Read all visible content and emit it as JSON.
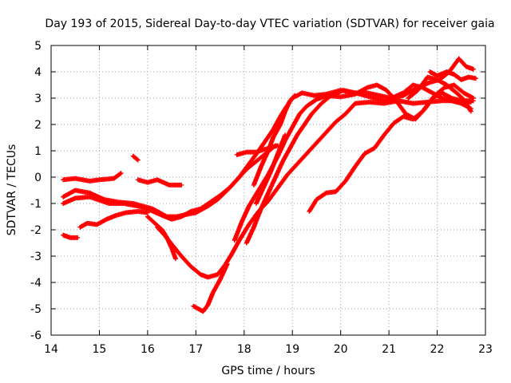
{
  "chart_data": {
    "type": "scatter",
    "title": "Day 193 of 2015, Sidereal Day-to-day VTEC variation (SDTVAR) for receiver gaia",
    "xlabel": "GPS time / hours",
    "ylabel": "SDTVAR / TECUs",
    "xlim": [
      14,
      23
    ],
    "ylim": [
      -6,
      5
    ],
    "xticks": [
      "14",
      "15",
      "16",
      "17",
      "18",
      "19",
      "20",
      "21",
      "22",
      "23"
    ],
    "yticks": [
      "-6",
      "-5",
      "-4",
      "-3",
      "-2",
      "-1",
      "0",
      "1",
      "2",
      "3",
      "4",
      "5"
    ],
    "grid": true,
    "marker_color": "#ff0000",
    "series": [
      {
        "points": [
          [
            14.25,
            -0.1
          ],
          [
            14.5,
            -0.05
          ],
          [
            14.8,
            -0.15
          ],
          [
            15.0,
            -0.1
          ],
          [
            15.3,
            -0.05
          ],
          [
            15.45,
            0.15
          ]
        ]
      },
      {
        "points": [
          [
            14.25,
            -0.75
          ],
          [
            14.5,
            -0.5
          ],
          [
            14.8,
            -0.6
          ],
          [
            15.1,
            -0.85
          ],
          [
            15.4,
            -0.95
          ],
          [
            15.7,
            -1.0
          ],
          [
            15.9,
            -1.1
          ],
          [
            16.1,
            -1.2
          ],
          [
            16.4,
            -1.5
          ],
          [
            16.6,
            -1.5
          ],
          [
            16.85,
            -1.4
          ],
          [
            17.0,
            -1.35
          ],
          [
            17.25,
            -1.1
          ],
          [
            17.45,
            -0.85
          ],
          [
            17.65,
            -0.5
          ],
          [
            17.85,
            -0.1
          ],
          [
            18.05,
            0.3
          ],
          [
            18.25,
            0.6
          ],
          [
            18.45,
            0.9
          ],
          [
            18.65,
            1.2
          ]
        ]
      },
      {
        "points": [
          [
            14.25,
            -1.0
          ],
          [
            14.5,
            -0.8
          ],
          [
            14.8,
            -0.75
          ],
          [
            15.2,
            -1.0
          ],
          [
            15.5,
            -1.0
          ],
          [
            15.8,
            -1.1
          ],
          [
            16.05,
            -1.25
          ],
          [
            16.3,
            -1.45
          ],
          [
            16.5,
            -1.6
          ],
          [
            16.7,
            -1.5
          ],
          [
            16.9,
            -1.3
          ],
          [
            17.1,
            -1.2
          ],
          [
            17.3,
            -0.95
          ],
          [
            17.5,
            -0.7
          ],
          [
            17.7,
            -0.4
          ],
          [
            17.9,
            0.0
          ],
          [
            18.1,
            0.5
          ],
          [
            18.3,
            1.0
          ],
          [
            18.45,
            1.4
          ],
          [
            18.6,
            1.8
          ],
          [
            18.75,
            2.3
          ],
          [
            18.85,
            2.6
          ],
          [
            19.0,
            3.0
          ],
          [
            19.2,
            3.2
          ],
          [
            19.45,
            3.1
          ],
          [
            19.7,
            3.15
          ],
          [
            20.0,
            3.3
          ],
          [
            20.3,
            3.2
          ],
          [
            20.6,
            3.05
          ],
          [
            20.9,
            2.9
          ],
          [
            21.3,
            3.1
          ],
          [
            21.6,
            3.4
          ],
          [
            21.85,
            3.6
          ],
          [
            22.05,
            3.7
          ],
          [
            22.25,
            4.0
          ],
          [
            22.45,
            4.5
          ],
          [
            22.6,
            4.2
          ],
          [
            22.75,
            4.1
          ]
        ]
      },
      {
        "points": [
          [
            14.25,
            -2.2
          ],
          [
            14.4,
            -2.3
          ],
          [
            14.55,
            -2.3
          ]
        ]
      },
      {
        "points": [
          [
            14.6,
            -1.9
          ],
          [
            14.75,
            -1.75
          ],
          [
            14.95,
            -1.8
          ],
          [
            15.15,
            -1.6
          ],
          [
            15.35,
            -1.45
          ],
          [
            15.55,
            -1.35
          ],
          [
            15.8,
            -1.3
          ],
          [
            16.0,
            -1.35
          ]
        ]
      },
      {
        "points": [
          [
            15.7,
            0.8
          ],
          [
            15.8,
            0.65
          ]
        ]
      },
      {
        "points": [
          [
            15.8,
            -0.1
          ],
          [
            16.0,
            -0.2
          ],
          [
            16.2,
            -0.1
          ],
          [
            16.45,
            -0.3
          ],
          [
            16.7,
            -0.3
          ]
        ]
      },
      {
        "points": [
          [
            16.0,
            -1.5
          ],
          [
            16.15,
            -1.75
          ],
          [
            16.3,
            -2.0
          ],
          [
            16.4,
            -2.3
          ],
          [
            16.5,
            -2.7
          ],
          [
            16.58,
            -3.1
          ]
        ]
      },
      {
        "points": [
          [
            16.2,
            -1.9
          ],
          [
            16.35,
            -2.2
          ],
          [
            16.5,
            -2.55
          ],
          [
            16.7,
            -3.0
          ],
          [
            16.9,
            -3.4
          ],
          [
            17.1,
            -3.7
          ],
          [
            17.25,
            -3.8
          ],
          [
            17.45,
            -3.7
          ],
          [
            17.6,
            -3.35
          ],
          [
            17.75,
            -2.9
          ],
          [
            17.9,
            -2.4
          ],
          [
            18.1,
            -1.8
          ],
          [
            18.3,
            -1.3
          ],
          [
            18.5,
            -0.9
          ],
          [
            18.7,
            -0.4
          ],
          [
            18.9,
            0.1
          ],
          [
            19.1,
            0.5
          ],
          [
            19.3,
            0.9
          ],
          [
            19.5,
            1.3
          ],
          [
            19.7,
            1.7
          ],
          [
            19.9,
            2.1
          ],
          [
            20.1,
            2.4
          ],
          [
            20.3,
            2.8
          ],
          [
            20.6,
            2.85
          ],
          [
            20.9,
            2.8
          ],
          [
            21.2,
            2.9
          ],
          [
            21.5,
            2.8
          ],
          [
            21.8,
            2.85
          ],
          [
            22.1,
            2.9
          ],
          [
            22.4,
            2.9
          ],
          [
            22.7,
            2.85
          ]
        ]
      },
      {
        "points": [
          [
            16.95,
            -4.9
          ],
          [
            17.05,
            -5.0
          ],
          [
            17.15,
            -5.1
          ],
          [
            17.25,
            -4.85
          ],
          [
            17.35,
            -4.4
          ],
          [
            17.5,
            -3.9
          ],
          [
            17.65,
            -3.3
          ]
        ]
      },
      {
        "points": [
          [
            17.8,
            -2.4
          ],
          [
            17.95,
            -1.7
          ],
          [
            18.1,
            -1.1
          ],
          [
            18.3,
            -0.5
          ],
          [
            18.5,
            0.1
          ],
          [
            18.7,
            0.8
          ],
          [
            18.85,
            1.4
          ],
          [
            19.0,
            1.9
          ],
          [
            19.15,
            2.4
          ],
          [
            19.3,
            2.7
          ],
          [
            19.5,
            2.95
          ],
          [
            19.7,
            3.1
          ],
          [
            20.0,
            3.05
          ],
          [
            20.3,
            3.15
          ],
          [
            20.55,
            3.4
          ],
          [
            20.75,
            3.5
          ],
          [
            20.95,
            3.3
          ],
          [
            21.15,
            2.9
          ],
          [
            21.35,
            2.4
          ],
          [
            21.55,
            2.2
          ],
          [
            21.75,
            2.6
          ],
          [
            21.95,
            3.1
          ],
          [
            22.15,
            3.4
          ],
          [
            22.35,
            3.5
          ],
          [
            22.55,
            3.2
          ],
          [
            22.75,
            3.0
          ]
        ]
      },
      {
        "points": [
          [
            18.05,
            -2.5
          ],
          [
            18.2,
            -1.9
          ],
          [
            18.35,
            -1.2
          ],
          [
            18.5,
            -0.6
          ],
          [
            18.65,
            0.0
          ],
          [
            18.8,
            0.6
          ],
          [
            18.95,
            1.1
          ],
          [
            19.1,
            1.6
          ],
          [
            19.25,
            2.0
          ],
          [
            19.4,
            2.4
          ],
          [
            19.6,
            2.8
          ],
          [
            19.8,
            3.1
          ],
          [
            20.05,
            3.3
          ],
          [
            20.3,
            3.2
          ],
          [
            20.55,
            3.2
          ],
          [
            20.8,
            3.1
          ],
          [
            21.05,
            3.0
          ],
          [
            21.3,
            3.2
          ],
          [
            21.5,
            3.5
          ],
          [
            21.7,
            3.4
          ],
          [
            21.9,
            3.2
          ],
          [
            22.1,
            3.0
          ],
          [
            22.3,
            2.9
          ],
          [
            22.5,
            2.8
          ],
          [
            22.7,
            2.6
          ]
        ]
      },
      {
        "points": [
          [
            18.2,
            -0.3
          ],
          [
            18.35,
            0.4
          ],
          [
            18.5,
            1.0
          ],
          [
            18.6,
            1.5
          ],
          [
            18.75,
            2.0
          ],
          [
            18.85,
            2.5
          ],
          [
            18.95,
            2.9
          ],
          [
            19.05,
            3.1
          ]
        ]
      },
      {
        "points": [
          [
            18.25,
            -1.0
          ],
          [
            18.4,
            -0.4
          ],
          [
            18.55,
            0.2
          ],
          [
            18.7,
            0.9
          ],
          [
            18.85,
            1.6
          ]
        ]
      },
      {
        "points": [
          [
            17.85,
            0.85
          ],
          [
            18.05,
            0.95
          ],
          [
            18.25,
            0.95
          ],
          [
            18.5,
            1.1
          ],
          [
            18.7,
            1.2
          ]
        ]
      },
      {
        "points": [
          [
            19.35,
            -1.3
          ],
          [
            19.5,
            -0.85
          ],
          [
            19.7,
            -0.6
          ],
          [
            19.9,
            -0.55
          ],
          [
            20.1,
            -0.15
          ],
          [
            20.3,
            0.4
          ],
          [
            20.5,
            0.9
          ],
          [
            20.7,
            1.1
          ],
          [
            20.9,
            1.6
          ],
          [
            21.1,
            2.05
          ],
          [
            21.3,
            2.3
          ],
          [
            21.5,
            2.2
          ],
          [
            21.7,
            2.5
          ],
          [
            21.9,
            3.0
          ],
          [
            22.1,
            3.2
          ],
          [
            22.3,
            3.0
          ],
          [
            22.5,
            2.9
          ],
          [
            22.75,
            2.9
          ]
        ]
      },
      {
        "points": [
          [
            21.85,
            4.0
          ],
          [
            22.0,
            3.85
          ],
          [
            22.2,
            4.0
          ],
          [
            22.35,
            3.9
          ],
          [
            22.5,
            3.7
          ],
          [
            22.65,
            3.8
          ],
          [
            22.8,
            3.75
          ]
        ]
      },
      {
        "points": [
          [
            21.4,
            3.0
          ],
          [
            21.6,
            3.3
          ],
          [
            21.8,
            3.8
          ],
          [
            22.0,
            3.7
          ],
          [
            22.2,
            3.5
          ],
          [
            22.4,
            3.2
          ],
          [
            22.55,
            2.95
          ],
          [
            22.7,
            2.5
          ]
        ]
      }
    ]
  }
}
